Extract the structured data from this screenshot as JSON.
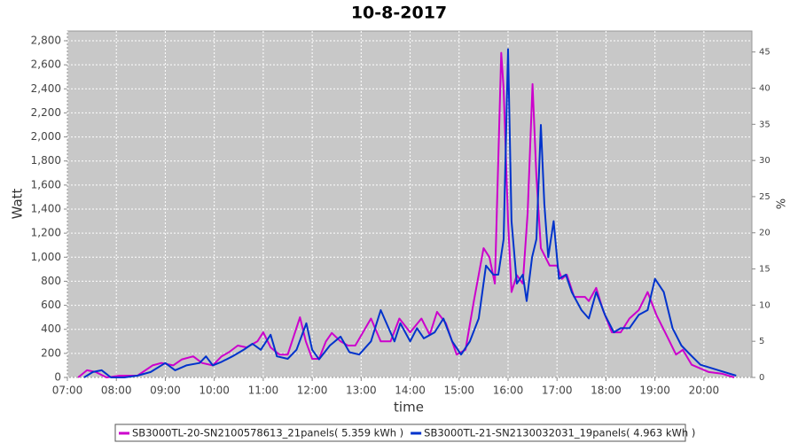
{
  "chart_data": {
    "type": "line",
    "title": "10-8-2017",
    "x_label": "time",
    "y_label": "Watt",
    "y2_label": "%",
    "xlim": [
      7,
      20.98
    ],
    "xticks": [
      {
        "value": 7,
        "label": "07:00"
      },
      {
        "value": 8,
        "label": "08:00"
      },
      {
        "value": 9,
        "label": "09:00"
      },
      {
        "value": 10,
        "label": "10:00"
      },
      {
        "value": 11,
        "label": "11:00"
      },
      {
        "value": 12,
        "label": "12:00"
      },
      {
        "value": 13,
        "label": "13:00"
      },
      {
        "value": 14,
        "label": "14:00"
      },
      {
        "value": 15,
        "label": "15:00"
      },
      {
        "value": 16,
        "label": "16:00"
      },
      {
        "value": 17,
        "label": "17:00"
      },
      {
        "value": 18,
        "label": "18:00"
      },
      {
        "value": 19,
        "label": "19:00"
      },
      {
        "value": 20,
        "label": "20:00"
      }
    ],
    "ylim": [
      0,
      2881
    ],
    "yticks": [
      0,
      200,
      400,
      600,
      800,
      {
        "value": 1000,
        "label": "1,000"
      },
      {
        "value": 1200,
        "label": "1,200"
      },
      {
        "value": 1400,
        "label": "1,400"
      },
      {
        "value": 1600,
        "label": "1,600"
      },
      {
        "value": 1800,
        "label": "1,800"
      },
      {
        "value": 2000,
        "label": "2,000"
      },
      {
        "value": 2200,
        "label": "2,200"
      },
      {
        "value": 2400,
        "label": "2,400"
      },
      {
        "value": 2600,
        "label": "2,600"
      },
      {
        "value": 2800,
        "label": "2,800"
      }
    ],
    "y2lim": [
      0,
      47.9
    ],
    "y2ticks": [
      0,
      5,
      10,
      15,
      20,
      25,
      30,
      35,
      40,
      45
    ],
    "grid": true,
    "legend": "bottom",
    "series": [
      {
        "name": "SB3000TL-20-SN2100578613_21panels( 5.359 kWh )",
        "color": "#cc00cc",
        "x": [
          7.22,
          7.4,
          7.58,
          7.8,
          8.07,
          8.43,
          8.74,
          8.92,
          9.16,
          9.34,
          9.57,
          9.75,
          9.97,
          10.15,
          10.3,
          10.48,
          10.66,
          10.88,
          11.0,
          11.15,
          11.33,
          11.5,
          11.75,
          11.87,
          12.0,
          12.14,
          12.28,
          12.4,
          12.58,
          12.73,
          12.88,
          13.2,
          13.4,
          13.6,
          13.78,
          14.0,
          14.23,
          14.4,
          14.55,
          14.73,
          14.95,
          15.13,
          15.3,
          15.5,
          15.62,
          15.73,
          15.86,
          15.91,
          16.0,
          16.07,
          16.18,
          16.3,
          16.4,
          16.5,
          16.58,
          16.67,
          16.85,
          17.0,
          17.1,
          17.2,
          17.35,
          17.57,
          17.65,
          17.8,
          17.94,
          18.12,
          18.3,
          18.48,
          18.67,
          18.85,
          19.03,
          19.25,
          19.43,
          19.57,
          19.75,
          20.1,
          20.38,
          20.62
        ],
        "values": [
          0,
          60,
          45,
          0,
          15,
          15,
          100,
          120,
          100,
          150,
          175,
          120,
          100,
          175,
          210,
          265,
          250,
          300,
          375,
          250,
          190,
          190,
          500,
          300,
          155,
          155,
          300,
          370,
          300,
          265,
          265,
          490,
          300,
          300,
          490,
          375,
          490,
          355,
          545,
          450,
          190,
          230,
          630,
          1075,
          1000,
          780,
          2700,
          2400,
          1300,
          710,
          850,
          780,
          1370,
          2440,
          1665,
          1075,
          930,
          930,
          820,
          855,
          670,
          670,
          635,
          745,
          560,
          375,
          375,
          490,
          560,
          710,
          520,
          340,
          190,
          230,
          105,
          45,
          30,
          0
        ]
      },
      {
        "name": "SB3000TL-21-SN2130032031_19panels( 4.963 kWh )",
        "color": "#0033cc",
        "x": [
          7.34,
          7.52,
          7.7,
          7.89,
          8.16,
          8.43,
          8.7,
          9.0,
          9.2,
          9.43,
          9.7,
          9.83,
          9.97,
          10.15,
          10.37,
          10.6,
          10.78,
          10.95,
          11.15,
          11.28,
          11.5,
          11.68,
          11.88,
          12.0,
          12.14,
          12.36,
          12.58,
          12.76,
          12.96,
          13.2,
          13.4,
          13.56,
          13.68,
          13.8,
          14.0,
          14.14,
          14.28,
          14.5,
          14.68,
          14.86,
          15.04,
          15.22,
          15.4,
          15.55,
          15.7,
          15.8,
          15.91,
          16.0,
          16.07,
          16.18,
          16.3,
          16.38,
          16.49,
          16.58,
          16.67,
          16.74,
          16.82,
          16.93,
          17.04,
          17.18,
          17.3,
          17.5,
          17.65,
          17.8,
          17.98,
          18.16,
          18.3,
          18.48,
          18.67,
          18.85,
          19.0,
          19.18,
          19.36,
          19.54,
          19.72,
          19.93,
          20.3,
          20.66
        ],
        "values": [
          0,
          45,
          60,
          0,
          0,
          15,
          45,
          120,
          60,
          100,
          120,
          175,
          100,
          130,
          175,
          230,
          280,
          230,
          355,
          175,
          155,
          230,
          450,
          230,
          150,
          265,
          340,
          210,
          190,
          300,
          560,
          410,
          300,
          450,
          300,
          410,
          325,
          375,
          490,
          300,
          190,
          300,
          490,
          930,
          855,
          855,
          1150,
          2730,
          1300,
          780,
          855,
          635,
          1000,
          1150,
          2100,
          1445,
          1000,
          1300,
          820,
          855,
          710,
          560,
          490,
          710,
          520,
          375,
          410,
          410,
          520,
          560,
          820,
          710,
          410,
          265,
          190,
          105,
          60,
          15
        ]
      }
    ]
  }
}
